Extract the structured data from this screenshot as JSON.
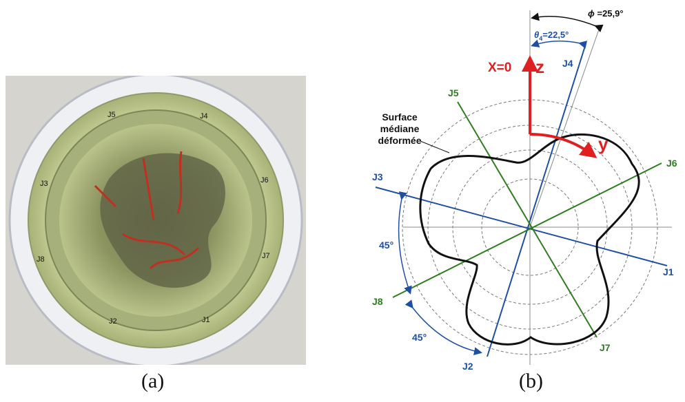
{
  "panel_a": {
    "caption": "(a)",
    "photo_labels": [
      "J5",
      "J4",
      "J6",
      "J3",
      "J7",
      "J8",
      "J2",
      "J1"
    ]
  },
  "panel_b": {
    "caption": "(b)",
    "surface_label_line1": "Surface",
    "surface_label_line2": "médiane",
    "surface_label_line3": "déformée",
    "phi_symbol": "ϕ",
    "phi_value": " =25,9°",
    "theta_symbol": "θ",
    "theta_sub": "4",
    "theta_value": "=22,5°",
    "x_label": "X=0",
    "z_label": "z",
    "y_label": "y",
    "angle_label_left": "45°",
    "angle_label_bottom": "45°",
    "joints": {
      "J1": "J1",
      "J2": "J2",
      "J3": "J3",
      "J4": "J4",
      "J5": "J5",
      "J6": "J6",
      "J7": "J7",
      "J8": "J8"
    },
    "colors": {
      "blue": "#1f4fa3",
      "green": "#2e7d1f",
      "red": "#e02020",
      "black": "#111111"
    }
  }
}
